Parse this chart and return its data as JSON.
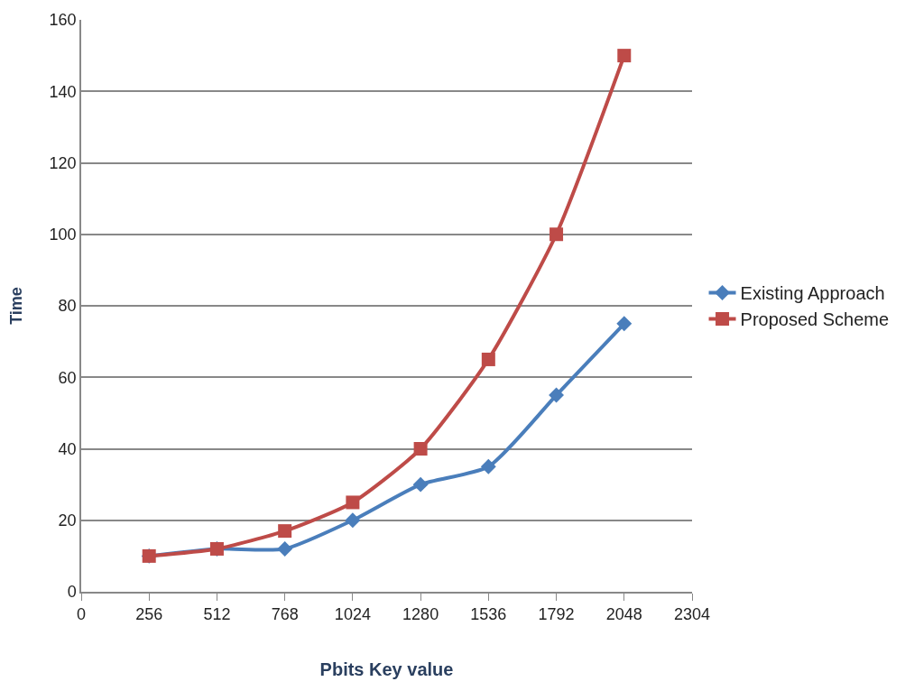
{
  "chart_data": {
    "type": "line",
    "xlabel": "Pbits Key value",
    "ylabel": "Time",
    "x": [
      256,
      512,
      768,
      1024,
      1280,
      1536,
      1792,
      2048
    ],
    "series": [
      {
        "name": "Existing Approach",
        "color": "#4a7ebb",
        "marker": "diamond",
        "values": [
          10,
          12,
          12,
          20,
          30,
          35,
          55,
          75
        ]
      },
      {
        "name": "Proposed Scheme",
        "color": "#be4b48",
        "marker": "square",
        "values": [
          10,
          12,
          17,
          25,
          40,
          65,
          100,
          150
        ]
      }
    ],
    "xlim": [
      0,
      2304
    ],
    "xticks": [
      0,
      256,
      512,
      768,
      1024,
      1280,
      1536,
      1792,
      2048,
      2304
    ],
    "ylim": [
      0,
      160
    ],
    "yticks": [
      0,
      20,
      40,
      60,
      80,
      100,
      120,
      140,
      160
    ],
    "grid": "y",
    "legend": "right",
    "line_style": "solid"
  }
}
